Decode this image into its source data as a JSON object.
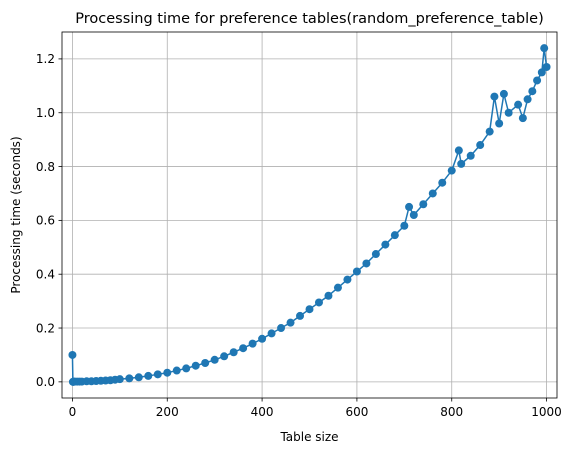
{
  "chart_data": {
    "type": "line",
    "title": "Processing time for preference tables(random_preference_table)",
    "xlabel": "Table size",
    "ylabel": "Processing time (seconds)",
    "xlim": [
      -22,
      1022
    ],
    "ylim": [
      -0.06,
      1.3
    ],
    "xticks": [
      0,
      200,
      400,
      600,
      800,
      1000
    ],
    "yticks": [
      0.0,
      0.2,
      0.4,
      0.6,
      0.8,
      1.0,
      1.2
    ],
    "xtick_labels": [
      "0",
      "200",
      "400",
      "600",
      "800",
      "1000"
    ],
    "ytick_labels": [
      "0.0",
      "0.2",
      "0.4",
      "0.6",
      "0.8",
      "1.0",
      "1.2"
    ],
    "grid": true,
    "marker": "circle",
    "color": "#1f77b4",
    "series": [
      {
        "x": [
          0,
          1,
          2,
          3,
          5,
          10,
          15,
          20,
          30,
          40,
          50,
          60,
          70,
          80,
          90,
          100,
          120,
          140,
          160,
          180,
          200,
          220,
          240,
          260,
          280,
          300,
          320,
          340,
          360,
          380,
          400,
          420,
          440,
          460,
          480,
          500,
          520,
          540,
          560,
          580,
          600,
          620,
          640,
          660,
          680,
          700,
          710,
          720,
          740,
          760,
          780,
          800,
          815,
          820,
          840,
          860,
          880,
          890,
          900,
          910,
          920,
          940,
          950,
          960,
          970,
          980,
          990,
          995,
          1000
        ],
        "y": [
          0.1,
          0.0,
          0.0,
          0.001,
          0.001,
          0.001,
          0.001,
          0.001,
          0.002,
          0.002,
          0.003,
          0.004,
          0.005,
          0.006,
          0.008,
          0.01,
          0.013,
          0.017,
          0.022,
          0.028,
          0.034,
          0.042,
          0.05,
          0.06,
          0.07,
          0.082,
          0.095,
          0.11,
          0.125,
          0.142,
          0.16,
          0.18,
          0.2,
          0.22,
          0.245,
          0.27,
          0.295,
          0.32,
          0.35,
          0.38,
          0.41,
          0.44,
          0.475,
          0.51,
          0.545,
          0.58,
          0.65,
          0.62,
          0.66,
          0.7,
          0.74,
          0.785,
          0.86,
          0.81,
          0.84,
          0.88,
          0.93,
          1.06,
          0.96,
          1.07,
          1.0,
          1.03,
          0.98,
          1.05,
          1.08,
          1.12,
          1.15,
          1.24,
          1.17
        ]
      }
    ]
  }
}
